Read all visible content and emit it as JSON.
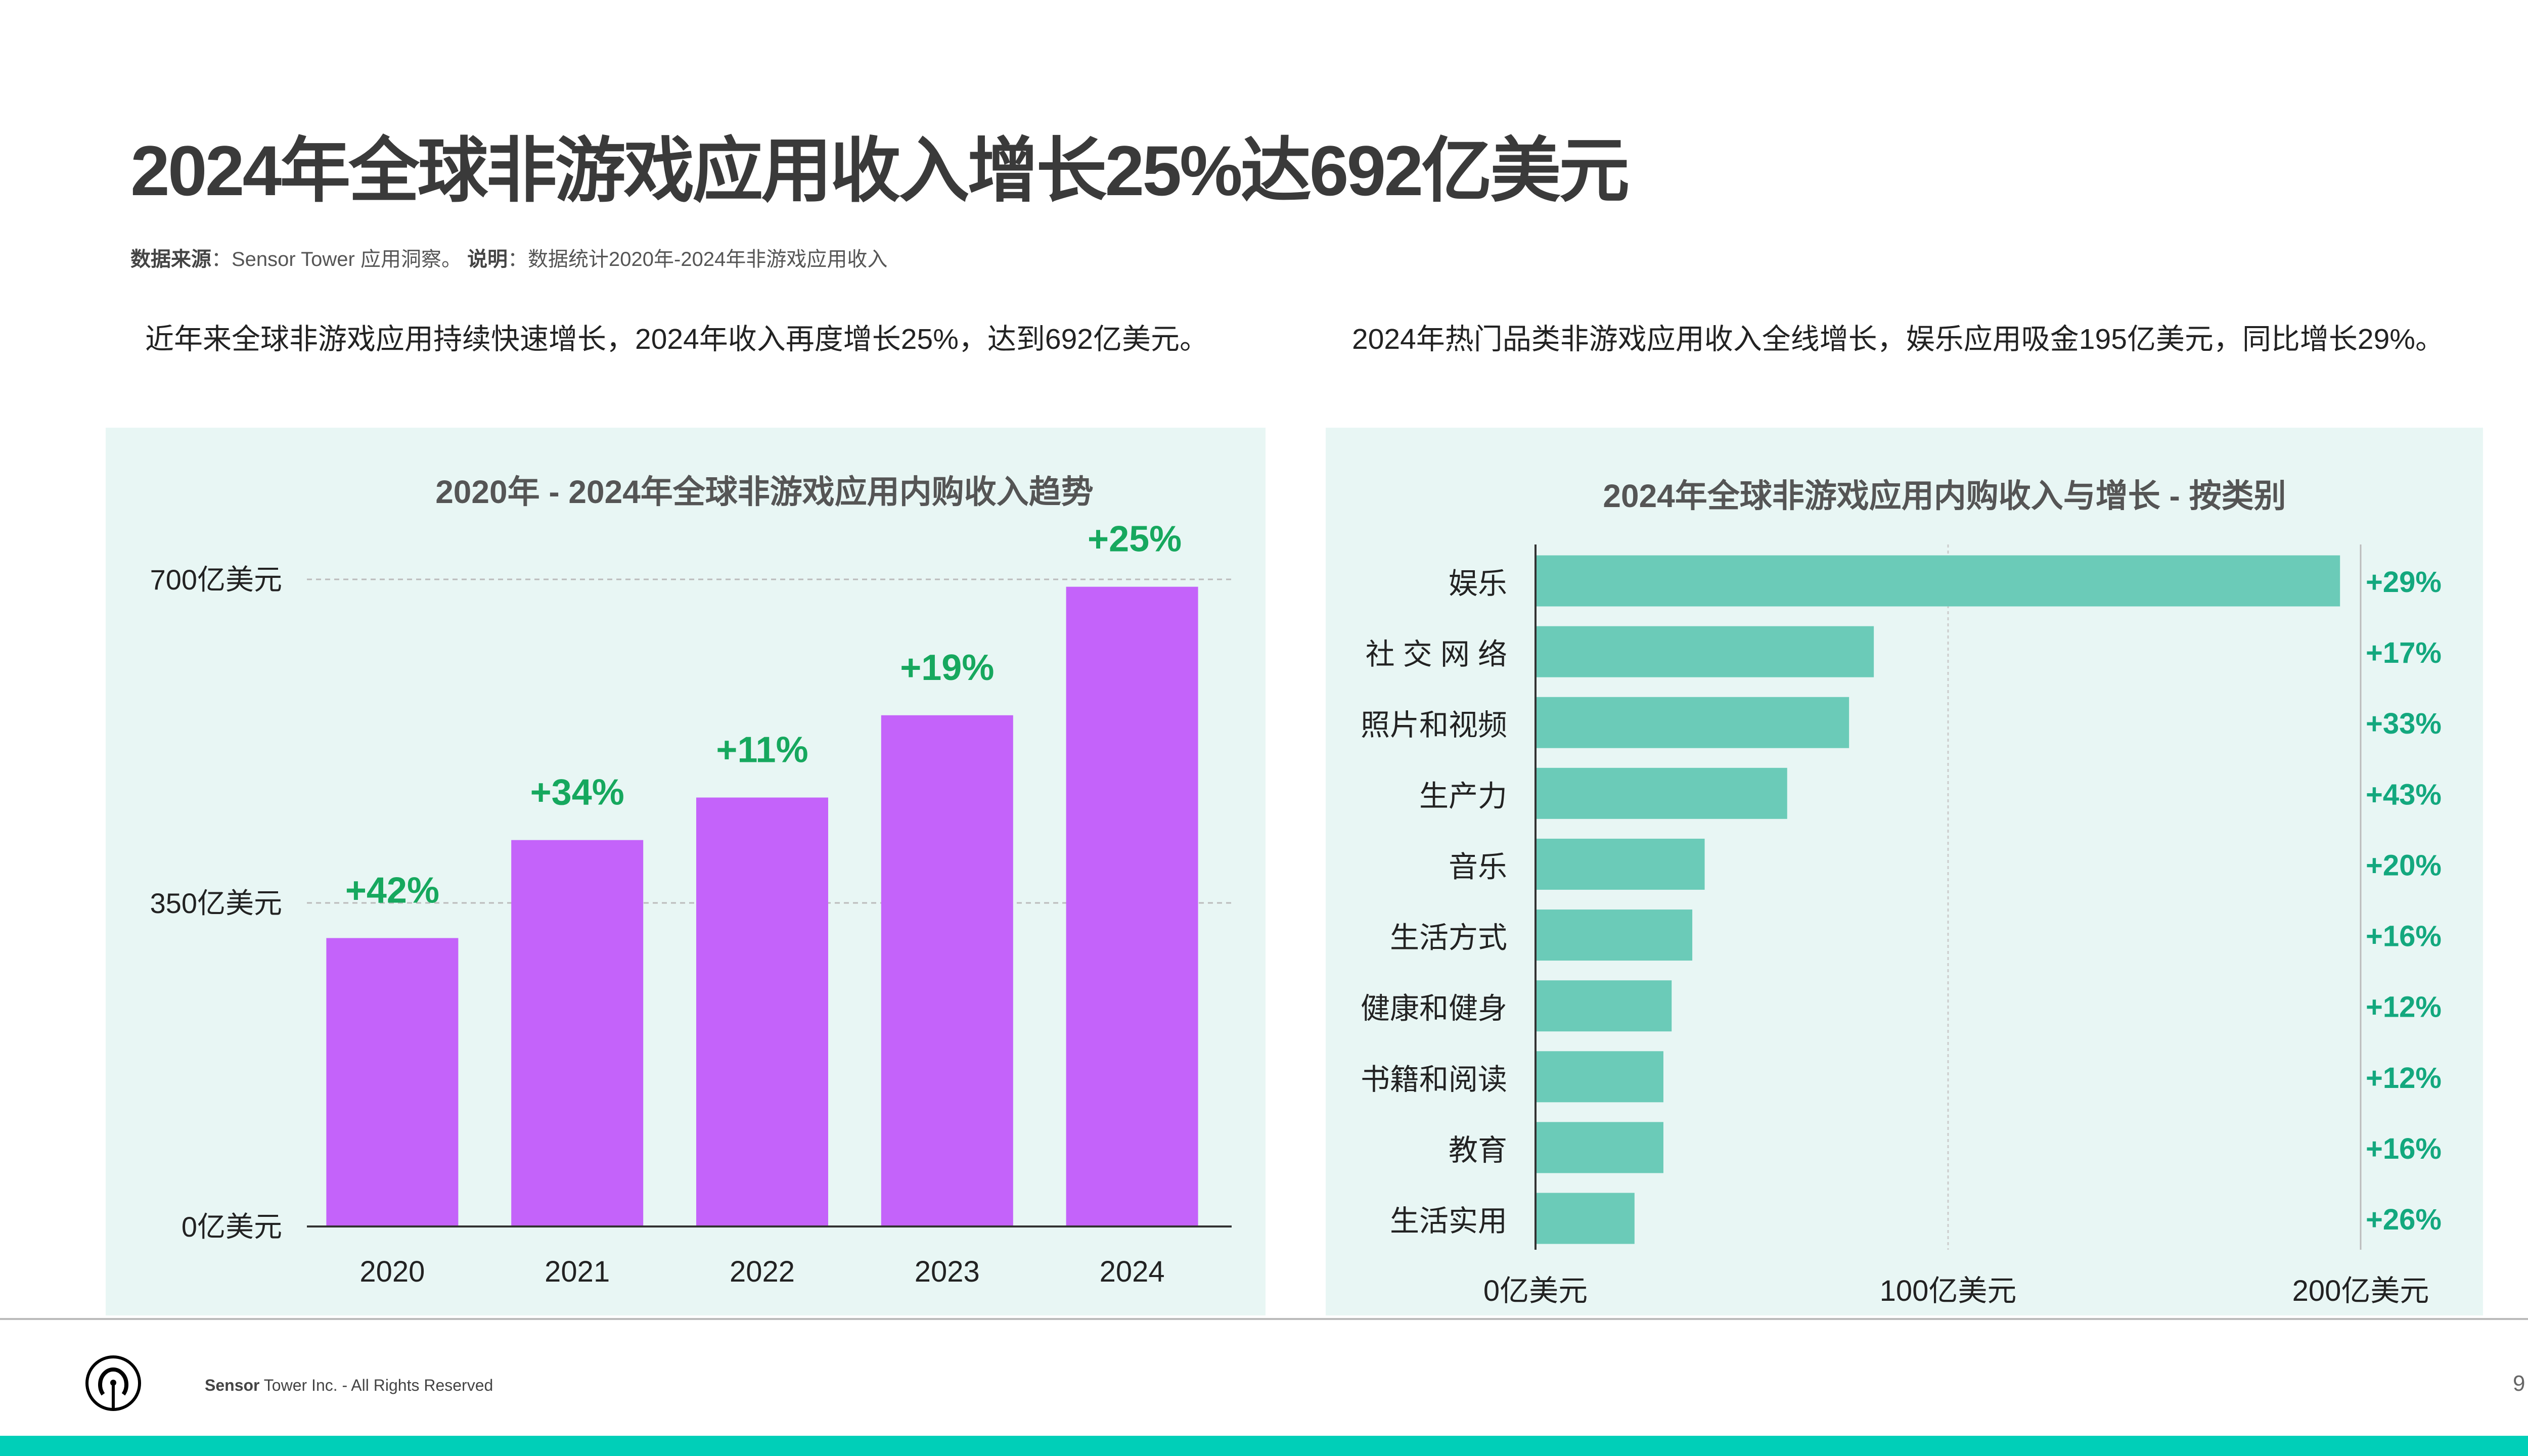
{
  "title": "2024年全球非游戏应用收入增长25%达692亿美元",
  "source": {
    "label": "数据来源",
    "text": "：Sensor Tower 应用洞察。 ",
    "note_label": "说明",
    "note_text": "：数据统计2020年-2024年非游戏应用收入"
  },
  "left_text": "近年来全球非游戏应用持续快速增长，2024年收入再度增长25%，达到692亿美元。",
  "right_text": "2024年热门品类非游戏应用收入全线增长，娱乐应用吸金195亿美元，同比增长29%。",
  "footer": {
    "brand": "Sensor",
    "text": " Tower Inc. - All Rights Reserved",
    "page": "9",
    "logo_icon": "sensor-tower-logo-icon"
  },
  "colors": {
    "purple_bar": "#c463fa",
    "teal_bar": "#6bcbb8",
    "growth_green": "#16a85e",
    "growth_teal": "#13a87e",
    "panel_bg": "#e8f6f4",
    "bottom_bar": "#00cfb8"
  },
  "chart_data": [
    {
      "type": "bar",
      "title": "2020年 - 2024年全球非游戏应用内购收入趋势",
      "categories": [
        "2020",
        "2021",
        "2022",
        "2023",
        "2024"
      ],
      "values": [
        312,
        418,
        464,
        553,
        692
      ],
      "growth_labels": [
        "+42%",
        "+34%",
        "+11%",
        "+19%",
        "+25%"
      ],
      "yticks": [
        {
          "value": 0,
          "label": "0亿美元"
        },
        {
          "value": 350,
          "label": "350亿美元"
        },
        {
          "value": 700,
          "label": "700亿美元"
        }
      ],
      "ylim": [
        0,
        700
      ],
      "grid": true
    },
    {
      "type": "bar",
      "orientation": "horizontal",
      "title": "2024年全球非游戏应用内购收入与增长 - 按类别",
      "categories": [
        "娱乐",
        "社 交 网 络",
        "照片和视频",
        "生产力",
        "音乐",
        "生活方式",
        "健康和健身",
        "书籍和阅读",
        "教育",
        "生活实用"
      ],
      "values": [
        195,
        82,
        76,
        61,
        41,
        38,
        33,
        31,
        31,
        24
      ],
      "growth_labels": [
        "+29%",
        "+17%",
        "+33%",
        "+43%",
        "+20%",
        "+16%",
        "+12%",
        "+12%",
        "+16%",
        "+26%"
      ],
      "xticks": [
        {
          "value": 0,
          "label": "0亿美元"
        },
        {
          "value": 100,
          "label": "100亿美元"
        },
        {
          "value": 200,
          "label": "200亿美元"
        }
      ],
      "xlim": [
        0,
        200
      ],
      "grid": true
    }
  ]
}
